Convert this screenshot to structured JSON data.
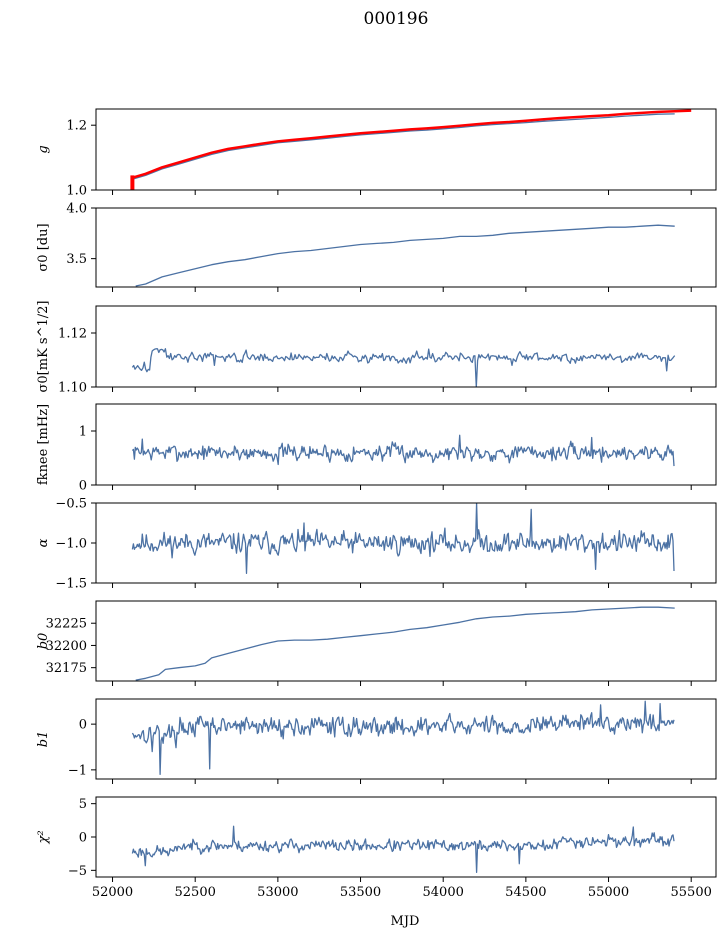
{
  "title": "000196",
  "xlabel": "MJD",
  "line_color": "#4c72a4",
  "fit_color": "#ff0000",
  "chart_data": [
    {
      "type": "line",
      "ylabel": "g",
      "ylabel_math": true,
      "ylim": [
        1.0,
        1.25
      ],
      "yticks": [
        1.0,
        1.2
      ],
      "ytick_labels": [
        "1.0",
        "1.2"
      ],
      "series": [
        {
          "values": [
            [
              52130,
              1.035
            ],
            [
              52200,
              1.045
            ],
            [
              52300,
              1.065
            ],
            [
              52400,
              1.08
            ],
            [
              52500,
              1.095
            ],
            [
              52600,
              1.11
            ],
            [
              52700,
              1.122
            ],
            [
              52800,
              1.13
            ],
            [
              52900,
              1.138
            ],
            [
              53000,
              1.146
            ],
            [
              53100,
              1.15
            ],
            [
              53200,
              1.155
            ],
            [
              53300,
              1.16
            ],
            [
              53400,
              1.165
            ],
            [
              53500,
              1.17
            ],
            [
              53600,
              1.174
            ],
            [
              53700,
              1.178
            ],
            [
              53800,
              1.182
            ],
            [
              53900,
              1.185
            ],
            [
              54000,
              1.189
            ],
            [
              54100,
              1.193
            ],
            [
              54200,
              1.198
            ],
            [
              54300,
              1.202
            ],
            [
              54400,
              1.205
            ],
            [
              54500,
              1.208
            ],
            [
              54600,
              1.212
            ],
            [
              54700,
              1.215
            ],
            [
              54800,
              1.218
            ],
            [
              54900,
              1.221
            ],
            [
              55000,
              1.224
            ],
            [
              55100,
              1.228
            ],
            [
              55200,
              1.231
            ],
            [
              55300,
              1.234
            ],
            [
              55400,
              1.235
            ]
          ]
        },
        {
          "values": [
            [
              52120,
              1.038
            ],
            [
              52200,
              1.05
            ],
            [
              52300,
              1.07
            ],
            [
              52400,
              1.085
            ],
            [
              52500,
              1.1
            ],
            [
              52600,
              1.115
            ],
            [
              52700,
              1.127
            ],
            [
              52800,
              1.135
            ],
            [
              52900,
              1.143
            ],
            [
              53000,
              1.15
            ],
            [
              53100,
              1.155
            ],
            [
              53200,
              1.16
            ],
            [
              53300,
              1.165
            ],
            [
              53400,
              1.17
            ],
            [
              53500,
              1.175
            ],
            [
              53600,
              1.179
            ],
            [
              53700,
              1.183
            ],
            [
              53800,
              1.187
            ],
            [
              53900,
              1.19
            ],
            [
              54000,
              1.194
            ],
            [
              54100,
              1.198
            ],
            [
              54200,
              1.203
            ],
            [
              54300,
              1.207
            ],
            [
              54400,
              1.21
            ],
            [
              54500,
              1.214
            ],
            [
              54600,
              1.218
            ],
            [
              54700,
              1.222
            ],
            [
              54800,
              1.225
            ],
            [
              54900,
              1.228
            ],
            [
              55000,
              1.231
            ],
            [
              55100,
              1.235
            ],
            [
              55200,
              1.238
            ],
            [
              55300,
              1.241
            ],
            [
              55400,
              1.243
            ],
            [
              55500,
              1.245
            ]
          ],
          "color": "#ff0000",
          "width": 2.5
        },
        {
          "values": [
            [
              52120,
              1.0
            ],
            [
              52120,
              1.045
            ]
          ],
          "color": "#ff0000",
          "width": 4
        }
      ]
    },
    {
      "type": "line",
      "ylabel": "σ0 [du]",
      "ylim": [
        3.22,
        4.0
      ],
      "yticks": [
        3.5,
        4.0
      ],
      "ytick_labels": [
        "3.5",
        "4.0"
      ],
      "series": [
        {
          "values": [
            [
              52140,
              3.23
            ],
            [
              52200,
              3.25
            ],
            [
              52300,
              3.32
            ],
            [
              52400,
              3.36
            ],
            [
              52500,
              3.4
            ],
            [
              52600,
              3.44
            ],
            [
              52700,
              3.47
            ],
            [
              52800,
              3.49
            ],
            [
              52900,
              3.52
            ],
            [
              53000,
              3.55
            ],
            [
              53100,
              3.57
            ],
            [
              53200,
              3.58
            ],
            [
              53300,
              3.6
            ],
            [
              53400,
              3.62
            ],
            [
              53500,
              3.64
            ],
            [
              53600,
              3.65
            ],
            [
              53700,
              3.66
            ],
            [
              53800,
              3.68
            ],
            [
              53900,
              3.69
            ],
            [
              54000,
              3.7
            ],
            [
              54100,
              3.72
            ],
            [
              54200,
              3.72
            ],
            [
              54300,
              3.73
            ],
            [
              54400,
              3.75
            ],
            [
              54500,
              3.76
            ],
            [
              54600,
              3.77
            ],
            [
              54700,
              3.78
            ],
            [
              54800,
              3.79
            ],
            [
              54900,
              3.8
            ],
            [
              55000,
              3.81
            ],
            [
              55100,
              3.81
            ],
            [
              55200,
              3.82
            ],
            [
              55300,
              3.83
            ],
            [
              55400,
              3.82
            ]
          ]
        }
      ]
    },
    {
      "type": "line",
      "ylabel": "σ0[mK s^1/2]",
      "ylim": [
        1.1,
        1.13
      ],
      "yticks": [
        1.1,
        1.12
      ],
      "ytick_labels": [
        "1.10",
        "1.12"
      ],
      "generate": {
        "from": 52120,
        "to": 55400,
        "step": 8,
        "base": 1.111,
        "noise": 0.0012,
        "seed": 3,
        "bumps": [
          [
            52120,
            52230,
            -0.004
          ],
          [
            52240,
            52320,
            0.003
          ]
        ],
        "spikes": [
          [
            54200,
            1.1
          ],
          [
            54220,
            1.112
          ],
          [
            52620,
            1.108
          ],
          [
            53910,
            1.114
          ],
          [
            54420,
            1.108
          ],
          [
            55350,
            1.106
          ]
        ]
      }
    },
    {
      "type": "line",
      "ylabel": "fknee [mHz]",
      "ylim": [
        0,
        1.5
      ],
      "yticks": [
        0,
        1
      ],
      "ytick_labels": [
        "0",
        "1"
      ],
      "generate": {
        "from": 52120,
        "to": 55400,
        "step": 6,
        "base": 0.6,
        "noise": 0.1,
        "seed": 7,
        "spikes": [
          [
            55400,
            0.35
          ],
          [
            52180,
            0.85
          ],
          [
            53000,
            0.38
          ],
          [
            54100,
            0.92
          ],
          [
            54900,
            0.88
          ]
        ]
      }
    },
    {
      "type": "line",
      "ylabel": "α",
      "ylabel_math": true,
      "ylim": [
        -1.5,
        -0.5
      ],
      "yticks": [
        -1.5,
        -1.0,
        -0.5
      ],
      "ytick_labels": [
        "−1.5",
        "−1.0",
        "−0.5"
      ],
      "generate": {
        "from": 52120,
        "to": 55400,
        "step": 6,
        "base": -1.0,
        "noise": 0.09,
        "seed": 11,
        "spikes": [
          [
            54200,
            -0.5
          ],
          [
            54530,
            -0.58
          ],
          [
            52810,
            -1.38
          ],
          [
            54920,
            -1.33
          ],
          [
            55400,
            -1.35
          ],
          [
            53160,
            -0.75
          ]
        ]
      }
    },
    {
      "type": "line",
      "ylabel": "b0",
      "ylabel_math": true,
      "ylim": [
        32160,
        32250
      ],
      "yticks": [
        32175,
        32200,
        32225
      ],
      "ytick_labels": [
        "32175",
        "32200",
        "32225"
      ],
      "series": [
        {
          "values": [
            [
              52140,
              32161
            ],
            [
              52200,
              32163
            ],
            [
              52280,
              32167
            ],
            [
              52320,
              32173
            ],
            [
              52400,
              32175
            ],
            [
              52500,
              32177
            ],
            [
              52560,
              32180
            ],
            [
              52600,
              32186
            ],
            [
              52700,
              32191
            ],
            [
              52800,
              32196
            ],
            [
              52900,
              32201
            ],
            [
              52950,
              32203
            ],
            [
              53000,
              32205
            ],
            [
              53100,
              32206
            ],
            [
              53200,
              32206
            ],
            [
              53300,
              32207
            ],
            [
              53400,
              32209
            ],
            [
              53500,
              32211
            ],
            [
              53600,
              32213
            ],
            [
              53700,
              32215
            ],
            [
              53800,
              32218
            ],
            [
              53900,
              32220
            ],
            [
              54000,
              32223
            ],
            [
              54100,
              32226
            ],
            [
              54200,
              32230
            ],
            [
              54300,
              32232
            ],
            [
              54400,
              32233
            ],
            [
              54500,
              32235
            ],
            [
              54600,
              32236
            ],
            [
              54700,
              32237
            ],
            [
              54800,
              32238
            ],
            [
              54900,
              32240
            ],
            [
              55000,
              32241
            ],
            [
              55100,
              32242
            ],
            [
              55200,
              32243
            ],
            [
              55300,
              32243
            ],
            [
              55400,
              32242
            ]
          ]
        }
      ]
    },
    {
      "type": "line",
      "ylabel": "b1",
      "ylabel_math": true,
      "ylim": [
        -1.2,
        0.55
      ],
      "yticks": [
        -1,
        0
      ],
      "ytick_labels": [
        "−1",
        "0"
      ],
      "generate": {
        "from": 52120,
        "to": 55400,
        "step": 6,
        "base": -0.05,
        "noise": 0.14,
        "seed": 17,
        "bumps": [
          [
            52120,
            52400,
            -0.15
          ],
          [
            54600,
            55400,
            0.08
          ]
        ],
        "spikes": [
          [
            52290,
            -1.1
          ],
          [
            52590,
            -0.98
          ],
          [
            52240,
            -0.6
          ],
          [
            55220,
            0.5
          ],
          [
            55310,
            0.45
          ],
          [
            54950,
            0.42
          ]
        ]
      }
    },
    {
      "type": "line",
      "ylabel": "χ²",
      "ylabel_math": true,
      "ylim": [
        -6,
        6
      ],
      "yticks": [
        -5,
        0,
        5
      ],
      "ytick_labels": [
        "−5",
        "0",
        "5"
      ],
      "generate": {
        "from": 52120,
        "to": 55400,
        "step": 6,
        "base": -1.3,
        "noise": 0.6,
        "seed": 23,
        "bumps": [
          [
            52120,
            52400,
            -0.9
          ],
          [
            54700,
            55400,
            0.7
          ]
        ],
        "spikes": [
          [
            54200,
            -5.3
          ],
          [
            52200,
            -4.3
          ],
          [
            52730,
            1.6
          ],
          [
            54460,
            -4.0
          ],
          [
            55150,
            1.5
          ]
        ]
      }
    }
  ],
  "xaxis": {
    "xlim": [
      51900,
      55650
    ],
    "ticks": [
      52000,
      52500,
      53000,
      53500,
      54000,
      54500,
      55000,
      55500
    ],
    "tick_labels": [
      "52000",
      "52500",
      "53000",
      "53500",
      "54000",
      "54500",
      "55000",
      "55500"
    ]
  }
}
